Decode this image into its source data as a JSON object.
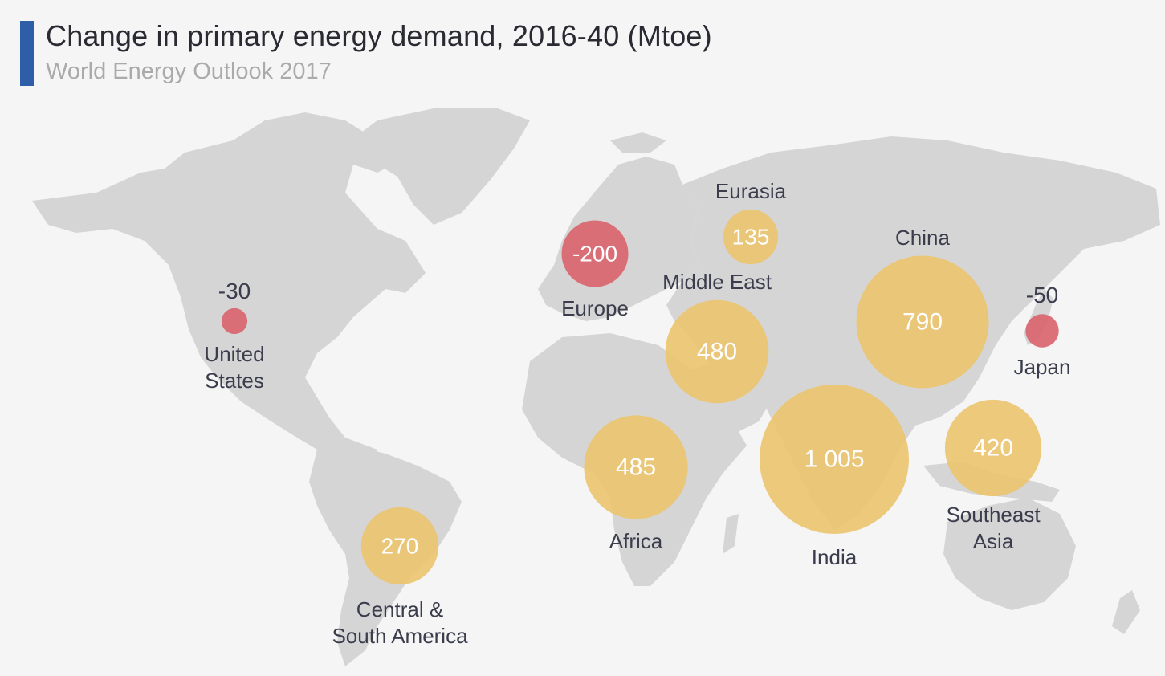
{
  "header": {
    "title": "Change in primary energy demand, 2016-40 (Mtoe)",
    "subtitle": "World Energy Outlook 2017"
  },
  "colors": {
    "accent": "#2e5ea8",
    "increase": "#ecc46e",
    "decrease": "#d9636b",
    "land": "#d5d5d5",
    "background": "#f5f5f5"
  },
  "regions": [
    {
      "id": "united-states",
      "name_lines": [
        "United",
        "States"
      ],
      "value": -30,
      "value_text": "-30"
    },
    {
      "id": "central-south-america",
      "name_lines": [
        "Central &",
        "South America"
      ],
      "value": 270,
      "value_text": "270"
    },
    {
      "id": "europe",
      "name_lines": [
        "Europe"
      ],
      "value": -200,
      "value_text": "-200"
    },
    {
      "id": "eurasia",
      "name_lines": [
        "Eurasia"
      ],
      "value": 135,
      "value_text": "135"
    },
    {
      "id": "middle-east",
      "name_lines": [
        "Middle East"
      ],
      "value": 480,
      "value_text": "480"
    },
    {
      "id": "africa",
      "name_lines": [
        "Africa"
      ],
      "value": 485,
      "value_text": "485"
    },
    {
      "id": "india",
      "name_lines": [
        "India"
      ],
      "value": 1005,
      "value_text": "1 005"
    },
    {
      "id": "china",
      "name_lines": [
        "China"
      ],
      "value": 790,
      "value_text": "790"
    },
    {
      "id": "southeast-asia",
      "name_lines": [
        "Southeast",
        "Asia"
      ],
      "value": 420,
      "value_text": "420"
    },
    {
      "id": "japan",
      "name_lines": [
        "Japan"
      ],
      "value": -50,
      "value_text": "-50"
    }
  ]
}
